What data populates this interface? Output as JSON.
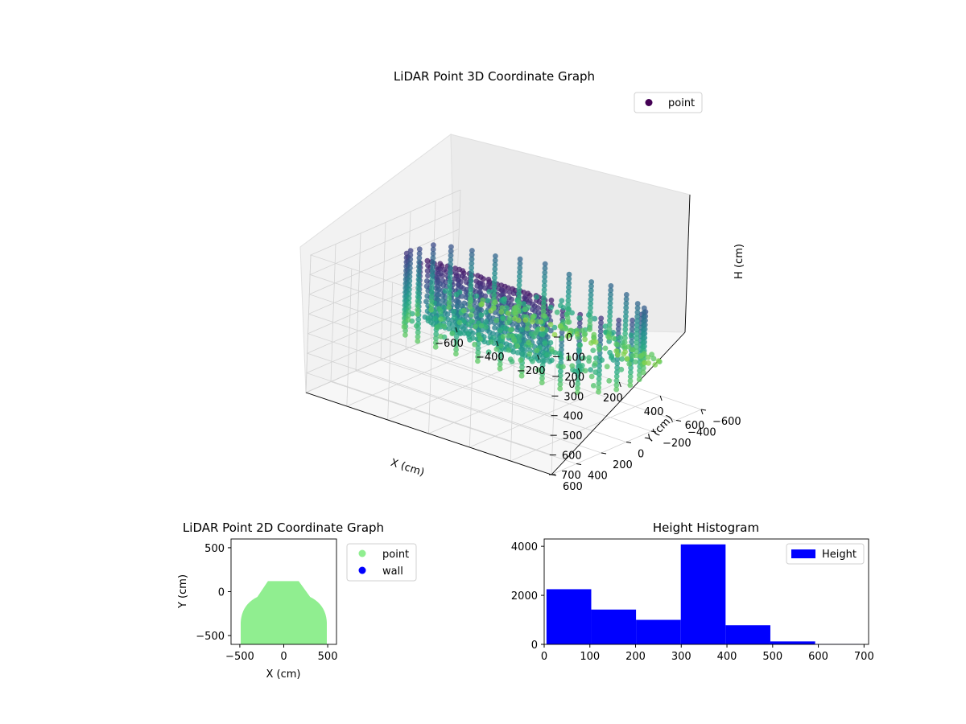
{
  "chart_data": [
    {
      "type": "scatter3d",
      "title": "LiDAR Point 3D Coordinate Graph",
      "xlabel": "X (cm)",
      "ylabel": "Y (cm)",
      "zlabel": "H (cm)",
      "xlim": [
        -600,
        600
      ],
      "ylim": [
        -600,
        600
      ],
      "zlim": [
        700,
        0
      ],
      "xticks": [
        "−600",
        "−400",
        "−200",
        "0",
        "200",
        "400",
        "600"
      ],
      "yticks": [
        "−600",
        "−400",
        "−200",
        "0",
        "200",
        "400",
        "600"
      ],
      "zticks": [
        "0",
        "100",
        "200",
        "300",
        "400",
        "500",
        "600",
        "700"
      ],
      "legend": {
        "placement": "top-right",
        "entries": [
          "point"
        ]
      },
      "colormap": "viridis",
      "grid": true,
      "shape": {
        "floor_radius_cm": 520,
        "wall_height_range_cm": [
          0,
          400
        ],
        "back_wall_y_cm": 130,
        "front_y_cm": -580,
        "column_spacing_deg": 12
      }
    },
    {
      "type": "scatter",
      "title": "LiDAR Point 2D Coordinate Graph",
      "xlabel": "X (cm)",
      "ylabel": "Y (cm)",
      "xlim": [
        -600,
        600
      ],
      "ylim": [
        -600,
        600
      ],
      "xticks": [
        "−500",
        "0",
        "500"
      ],
      "yticks": [
        "−500",
        "0",
        "500"
      ],
      "series": [
        {
          "name": "point",
          "color": "#90ee90",
          "region": {
            "x": [
              -490,
              490
            ],
            "y": [
              -600,
              130
            ]
          }
        },
        {
          "name": "wall",
          "color": "#0000ff",
          "points": []
        }
      ],
      "legend": {
        "placement": "outside-right"
      }
    },
    {
      "type": "histogram",
      "title": "Height Histogram",
      "xlim": [
        0,
        710
      ],
      "ylim": [
        0,
        4300
      ],
      "xticks": [
        "0",
        "100",
        "200",
        "300",
        "400",
        "500",
        "600",
        "700"
      ],
      "yticks": [
        "0",
        "2000",
        "4000"
      ],
      "bins": [
        {
          "x0": 5,
          "x1": 103,
          "count": 2250
        },
        {
          "x0": 103,
          "x1": 201,
          "count": 1420
        },
        {
          "x0": 201,
          "x1": 299,
          "count": 1000
        },
        {
          "x0": 299,
          "x1": 397,
          "count": 4080
        },
        {
          "x0": 397,
          "x1": 495,
          "count": 780
        },
        {
          "x0": 495,
          "x1": 593,
          "count": 120
        },
        {
          "x0": 593,
          "x1": 691,
          "count": 15
        }
      ],
      "series": [
        {
          "name": "Height",
          "color": "#0000ff"
        }
      ],
      "legend": {
        "placement": "top-right"
      }
    }
  ]
}
